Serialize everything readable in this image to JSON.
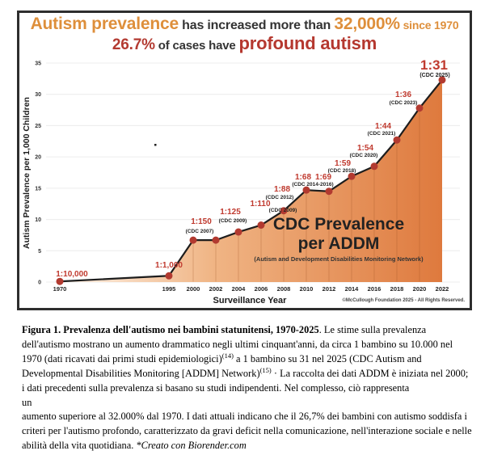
{
  "headline": {
    "line1_a": "Autism prevalence",
    "line1_b": " has increased more than ",
    "line1_c": "32,000%",
    "line1_d": " since 1970",
    "line2_a": "26.7%",
    "line2_b": " of cases have ",
    "line2_c": "profound autism"
  },
  "colors": {
    "accent_orange": "#DE8F3B",
    "accent_red": "#B33A31",
    "label_red": "#C03A2F",
    "point": "#B23A30",
    "line": "#1D1D1D",
    "grid": "#ECECEC",
    "fill_left": "#FDF3E9",
    "fill_mid": "#F0B585",
    "fill_right": "#DD7538",
    "text_dark": "#262626"
  },
  "chart_data": {
    "type": "area",
    "title": "Autism prevalence has increased more than 32,000% since 1970; 26.7% of cases have profound autism",
    "xlabel": "Surveillance Year",
    "ylabel": "Autism Prevalence per 1,000 Children",
    "ylim": [
      0,
      35
    ],
    "yticks": [
      0,
      5,
      10,
      15,
      20,
      25,
      30,
      35
    ],
    "grid": "horizontal",
    "legend": "none",
    "x": [
      1970,
      1995,
      2000,
      2002,
      2004,
      2006,
      2008,
      2010,
      2012,
      2014,
      2016,
      2018,
      2020,
      2022
    ],
    "values_per_1000": [
      0.1,
      1.0,
      6.7,
      6.7,
      8.0,
      9.1,
      11.4,
      14.7,
      14.5,
      16.9,
      18.5,
      22.7,
      27.8,
      32.3
    ],
    "point_labels": [
      {
        "ratio": "1:10,000",
        "cdc": ""
      },
      {
        "ratio": "1:1,000",
        "cdc": ""
      },
      {
        "ratio": "1:150",
        "cdc": "(CDC 2007)"
      },
      {
        "ratio": "",
        "cdc": ""
      },
      {
        "ratio": "1:125",
        "cdc": "(CDC 2009)"
      },
      {
        "ratio": "1:110",
        "cdc": "(CDC 2009)"
      },
      {
        "ratio": "1:88",
        "cdc": "(CDC 2012)"
      },
      {
        "ratio": "1:68",
        "cdc": "(CDC 2014-2016)"
      },
      {
        "ratio": "1:69",
        "cdc": ""
      },
      {
        "ratio": "1:59",
        "cdc": "(CDC 2018)"
      },
      {
        "ratio": "1:54",
        "cdc": "(CDC 2020)"
      },
      {
        "ratio": "1:44",
        "cdc": "(CDC 2021)"
      },
      {
        "ratio": "1:36",
        "cdc": "(CDC 2023)"
      },
      {
        "ratio": "1:31",
        "cdc": "(CDC 2025)"
      }
    ],
    "annotation": {
      "line1": "CDC Prevalence",
      "line2": "per ADDM",
      "sub": "(Autism and Development Disabilities Monitoring Network)"
    },
    "copyright": "©McCullough Foundation 2025 - All Rights Reserved."
  },
  "caption": {
    "bold_lead": "Figura 1. Prevalenza dell'autismo nei bambini statunitensi, 1970-2025",
    "seg1": ". Le stime sulla prevalenza dell'autismo mostrano un aumento drammatico negli ultimi cinquant'anni, da circa 1 bambino su 10.000 nel 1970 (dati ricavati dai primi studi epidemiologici)",
    "sup1": "(14)",
    "seg2": " a 1 bambino su 31 nel 2025 (CDC Autism and Developmental Disabilities Monitoring [ADDM] Network)",
    "sup2": "(15)",
    "seg3": " · La raccolta dei dati ADDM è iniziata nel 2000; i dati precedenti sulla prevalenza si basano su studi indipendenti. Nel complesso, ciò rappresenta",
    "word_un": "un",
    "para2": "aumento superiore al 32.000% dal 1970. I dati attuali indicano che il 26,7% dei bambini con autismo soddisfa i criteri per l'autismo profondo, caratterizzato da gravi deficit nella comunicazione, nell'interazione sociale e nelle abilità della vita quotidiana. ",
    "credit": "*Creato con Biorender.com"
  }
}
